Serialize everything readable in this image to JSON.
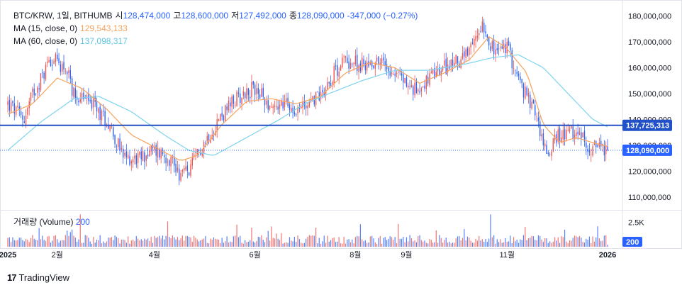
{
  "legend": {
    "symbol": "BTC/KRW, 1일, BITHUMB",
    "open_label": "시",
    "open": "128,474,000",
    "high_label": "고",
    "high": "128,600,000",
    "low_label": "저",
    "low": "127,492,000",
    "close_label": "종",
    "close": "128,090,000",
    "change": "-347,000 (−0.27%)",
    "ma15_label": "MA (15, close, 0)",
    "ma15_value": "129,543,133",
    "ma60_label": "MA (60, close, 0)",
    "ma60_value": "137,098,317"
  },
  "volume_legend": {
    "label": "거래량 (Volume)",
    "value": "200"
  },
  "branding": {
    "name": "TradingView",
    "mark": "17"
  },
  "colors": {
    "up": "#ef5350",
    "down": "#2962ff",
    "ma15": "#f7a35c",
    "ma60": "#7fd3ee",
    "hline": "#2250c7",
    "price_tag": "#2962ff"
  },
  "chart_data": {
    "type": "candlestick",
    "symbol": "BTC/KRW",
    "exchange": "BITHUMB",
    "interval": "1D",
    "y_axis": {
      "ticks": [
        110000000,
        120000000,
        130000000,
        140000000,
        150000000,
        160000000,
        170000000,
        180000000
      ],
      "tick_labels": [
        "110,000,000",
        "120,000,000",
        "130,000,000",
        "140,000,000",
        "150,000,000",
        "160,000,000",
        "170,000,000",
        "180,000,000"
      ],
      "range": [
        105000000,
        184000000
      ]
    },
    "x_axis": {
      "labels": [
        "2025",
        "2월",
        "4월",
        "6월",
        "8월",
        "9월",
        "11월",
        "2026"
      ],
      "label_days": [
        0,
        30,
        89,
        150,
        211,
        242,
        303,
        364
      ]
    },
    "horizontal_line": {
      "value": 137725313,
      "label": "137,725,313"
    },
    "last_price": {
      "value": 128090000,
      "label": "128,090,000"
    },
    "volume_axis": {
      "tick_label": "2.5K",
      "last_label": "200",
      "tick_value": 2500,
      "max": 3400
    },
    "closes_keypoints": [
      [
        0,
        146000000
      ],
      [
        10,
        140000000
      ],
      [
        15,
        150000000
      ],
      [
        22,
        158000000
      ],
      [
        25,
        164000000
      ],
      [
        35,
        160000000
      ],
      [
        40,
        150000000
      ],
      [
        50,
        147000000
      ],
      [
        62,
        138000000
      ],
      [
        70,
        125000000
      ],
      [
        80,
        125000000
      ],
      [
        88,
        128000000
      ],
      [
        94,
        127000000
      ],
      [
        100,
        124000000
      ],
      [
        104,
        119000000
      ],
      [
        110,
        120000000
      ],
      [
        118,
        130000000
      ],
      [
        128,
        140000000
      ],
      [
        140,
        149000000
      ],
      [
        150,
        152000000
      ],
      [
        160,
        145000000
      ],
      [
        168,
        146000000
      ],
      [
        176,
        144000000
      ],
      [
        190,
        150000000
      ],
      [
        198,
        158000000
      ],
      [
        204,
        163000000
      ],
      [
        215,
        161000000
      ],
      [
        225,
        163000000
      ],
      [
        238,
        157000000
      ],
      [
        246,
        151000000
      ],
      [
        255,
        155000000
      ],
      [
        265,
        160000000
      ],
      [
        280,
        165000000
      ],
      [
        288,
        178000000
      ],
      [
        295,
        166000000
      ],
      [
        303,
        168000000
      ],
      [
        312,
        152000000
      ],
      [
        320,
        143000000
      ],
      [
        327,
        126000000
      ],
      [
        333,
        133000000
      ],
      [
        340,
        135000000
      ],
      [
        346,
        134000000
      ],
      [
        352,
        130000000
      ],
      [
        358,
        128500000
      ],
      [
        364,
        128090000
      ]
    ],
    "ma15_keypoints": [
      [
        0,
        142000000
      ],
      [
        15,
        146000000
      ],
      [
        30,
        156000000
      ],
      [
        45,
        152000000
      ],
      [
        60,
        144000000
      ],
      [
        75,
        134000000
      ],
      [
        90,
        129000000
      ],
      [
        105,
        124000000
      ],
      [
        115,
        126000000
      ],
      [
        130,
        138000000
      ],
      [
        145,
        147000000
      ],
      [
        160,
        148000000
      ],
      [
        175,
        146000000
      ],
      [
        190,
        149000000
      ],
      [
        205,
        158000000
      ],
      [
        220,
        162000000
      ],
      [
        235,
        160000000
      ],
      [
        250,
        154000000
      ],
      [
        265,
        158000000
      ],
      [
        280,
        163000000
      ],
      [
        292,
        172000000
      ],
      [
        302,
        168000000
      ],
      [
        315,
        158000000
      ],
      [
        325,
        138000000
      ],
      [
        335,
        131000000
      ],
      [
        345,
        133000000
      ],
      [
        355,
        131000000
      ],
      [
        364,
        129543133
      ]
    ],
    "ma60_keypoints": [
      [
        0,
        128000000
      ],
      [
        20,
        139000000
      ],
      [
        40,
        148000000
      ],
      [
        55,
        149000000
      ],
      [
        75,
        143000000
      ],
      [
        95,
        134000000
      ],
      [
        110,
        128000000
      ],
      [
        125,
        126000000
      ],
      [
        145,
        133000000
      ],
      [
        165,
        140000000
      ],
      [
        180,
        146000000
      ],
      [
        195,
        150000000
      ],
      [
        215,
        155000000
      ],
      [
        235,
        159000000
      ],
      [
        255,
        159000000
      ],
      [
        275,
        161000000
      ],
      [
        295,
        164000000
      ],
      [
        310,
        165000000
      ],
      [
        325,
        160000000
      ],
      [
        340,
        150000000
      ],
      [
        355,
        140000000
      ],
      [
        364,
        137098317
      ]
    ]
  }
}
